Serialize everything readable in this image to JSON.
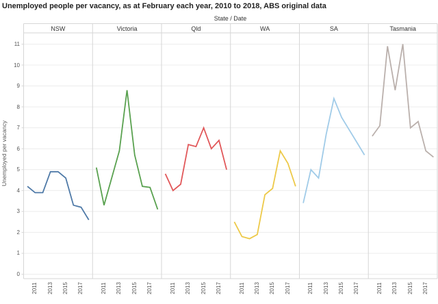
{
  "title": "Unemployed people per vacancy, as at February each year, 2010 to 2018, ABS original data",
  "column_field_label": "State / Date",
  "chart_data": {
    "type": "line",
    "layout": "small-multiples-6-column-panels",
    "title": "Unemployed people per vacancy, as at February each year, 2010 to 2018, ABS original data",
    "xlabel": "State / Date",
    "ylabel": "Unemployed per vacancy",
    "x": [
      2010,
      2011,
      2012,
      2013,
      2014,
      2015,
      2016,
      2017,
      2018
    ],
    "x_tick_labels": [
      "2011",
      "2013",
      "2015",
      "2017"
    ],
    "x_tick_years": [
      2011,
      2013,
      2015,
      2017
    ],
    "ylim": [
      0,
      11
    ],
    "y_ticks": [
      0,
      1,
      2,
      3,
      4,
      5,
      6,
      7,
      8,
      9,
      10,
      11
    ],
    "grid": "horizontal-on",
    "legend": "none (panel headers label each series)",
    "series": [
      {
        "name": "NSW",
        "color": "#4e79a7",
        "values": [
          4.2,
          3.9,
          3.9,
          4.9,
          4.9,
          4.6,
          3.3,
          3.2,
          2.6
        ]
      },
      {
        "name": "Victoria",
        "color": "#59a14f",
        "values": [
          5.1,
          3.3,
          4.6,
          5.9,
          8.8,
          5.7,
          4.2,
          4.15,
          3.1
        ]
      },
      {
        "name": "Qld",
        "color": "#e15759",
        "values": [
          4.8,
          4.0,
          4.3,
          6.2,
          6.1,
          7.0,
          6.0,
          6.4,
          5.0
        ]
      },
      {
        "name": "WA",
        "color": "#edc948",
        "values": [
          2.5,
          1.8,
          1.7,
          1.9,
          3.8,
          4.1,
          5.9,
          5.3,
          4.2
        ]
      },
      {
        "name": "SA",
        "color": "#a0cbe8",
        "values": [
          3.4,
          5.0,
          4.6,
          6.7,
          8.4,
          7.5,
          6.9,
          6.3,
          5.7
        ]
      },
      {
        "name": "Tasmania",
        "color": "#bab0ac",
        "values": [
          6.6,
          7.1,
          10.9,
          8.8,
          11.0,
          7.0,
          7.3,
          5.9,
          5.6
        ]
      }
    ],
    "style_colors": {
      "gridline": "#ececec",
      "panel_border": "#d6d6d6",
      "header_text": "#333333",
      "axis_text": "#555555",
      "title_text": "#1f1f1f"
    }
  }
}
